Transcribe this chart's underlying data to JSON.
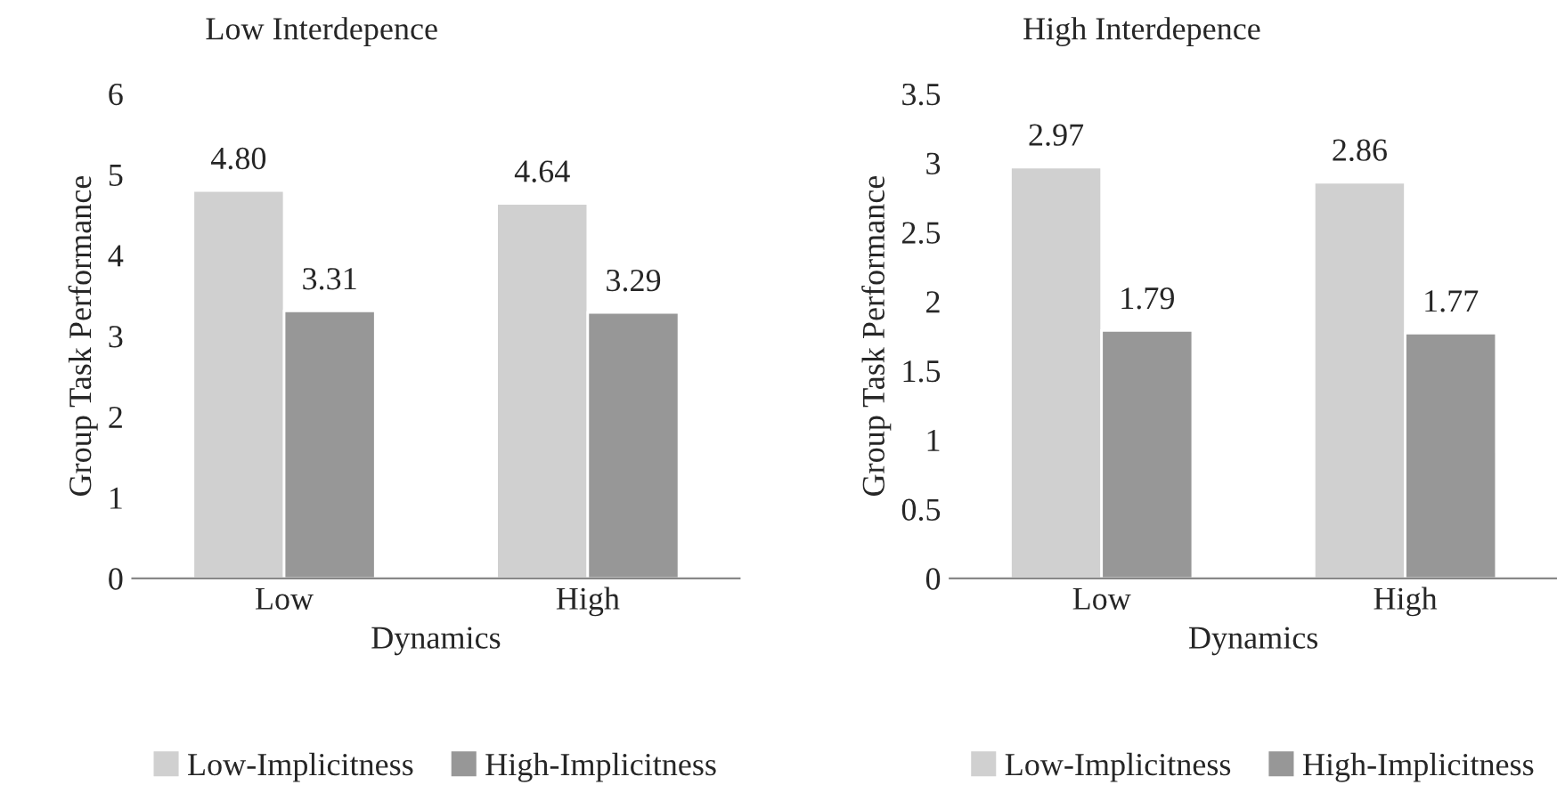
{
  "chart_data": [
    {
      "type": "bar",
      "title": "Low Interdepence",
      "xlabel": "Dynamics",
      "ylabel": "Group Task Performance",
      "categories": [
        "Low",
        "High"
      ],
      "series": [
        {
          "name": "Low-Implicitness",
          "color": "#d0d0d0",
          "values": [
            4.8,
            4.64
          ],
          "value_labels": [
            "4.80",
            "4.64"
          ]
        },
        {
          "name": "High-Implicitness",
          "color": "#979797",
          "values": [
            3.31,
            3.29
          ],
          "value_labels": [
            "3.31",
            "3.29"
          ]
        }
      ],
      "ylim": [
        0,
        6
      ],
      "yticks": [
        0,
        1,
        2,
        3,
        4,
        5,
        6
      ],
      "legend": "bottom",
      "grid": false
    },
    {
      "type": "bar",
      "title": "High Interdepence",
      "xlabel": "Dynamics",
      "ylabel": "Group Task Performance",
      "categories": [
        "Low",
        "High"
      ],
      "series": [
        {
          "name": "Low-Implicitness",
          "color": "#d0d0d0",
          "values": [
            2.97,
            2.86
          ],
          "value_labels": [
            "2.97",
            "2.86"
          ]
        },
        {
          "name": "High-Implicitness",
          "color": "#979797",
          "values": [
            1.79,
            1.77
          ],
          "value_labels": [
            "1.79",
            "1.77"
          ]
        }
      ],
      "ylim": [
        0,
        3.5
      ],
      "yticks": [
        0,
        0.5,
        1,
        1.5,
        2,
        2.5,
        3,
        3.5
      ],
      "legend": "bottom",
      "grid": false
    }
  ]
}
